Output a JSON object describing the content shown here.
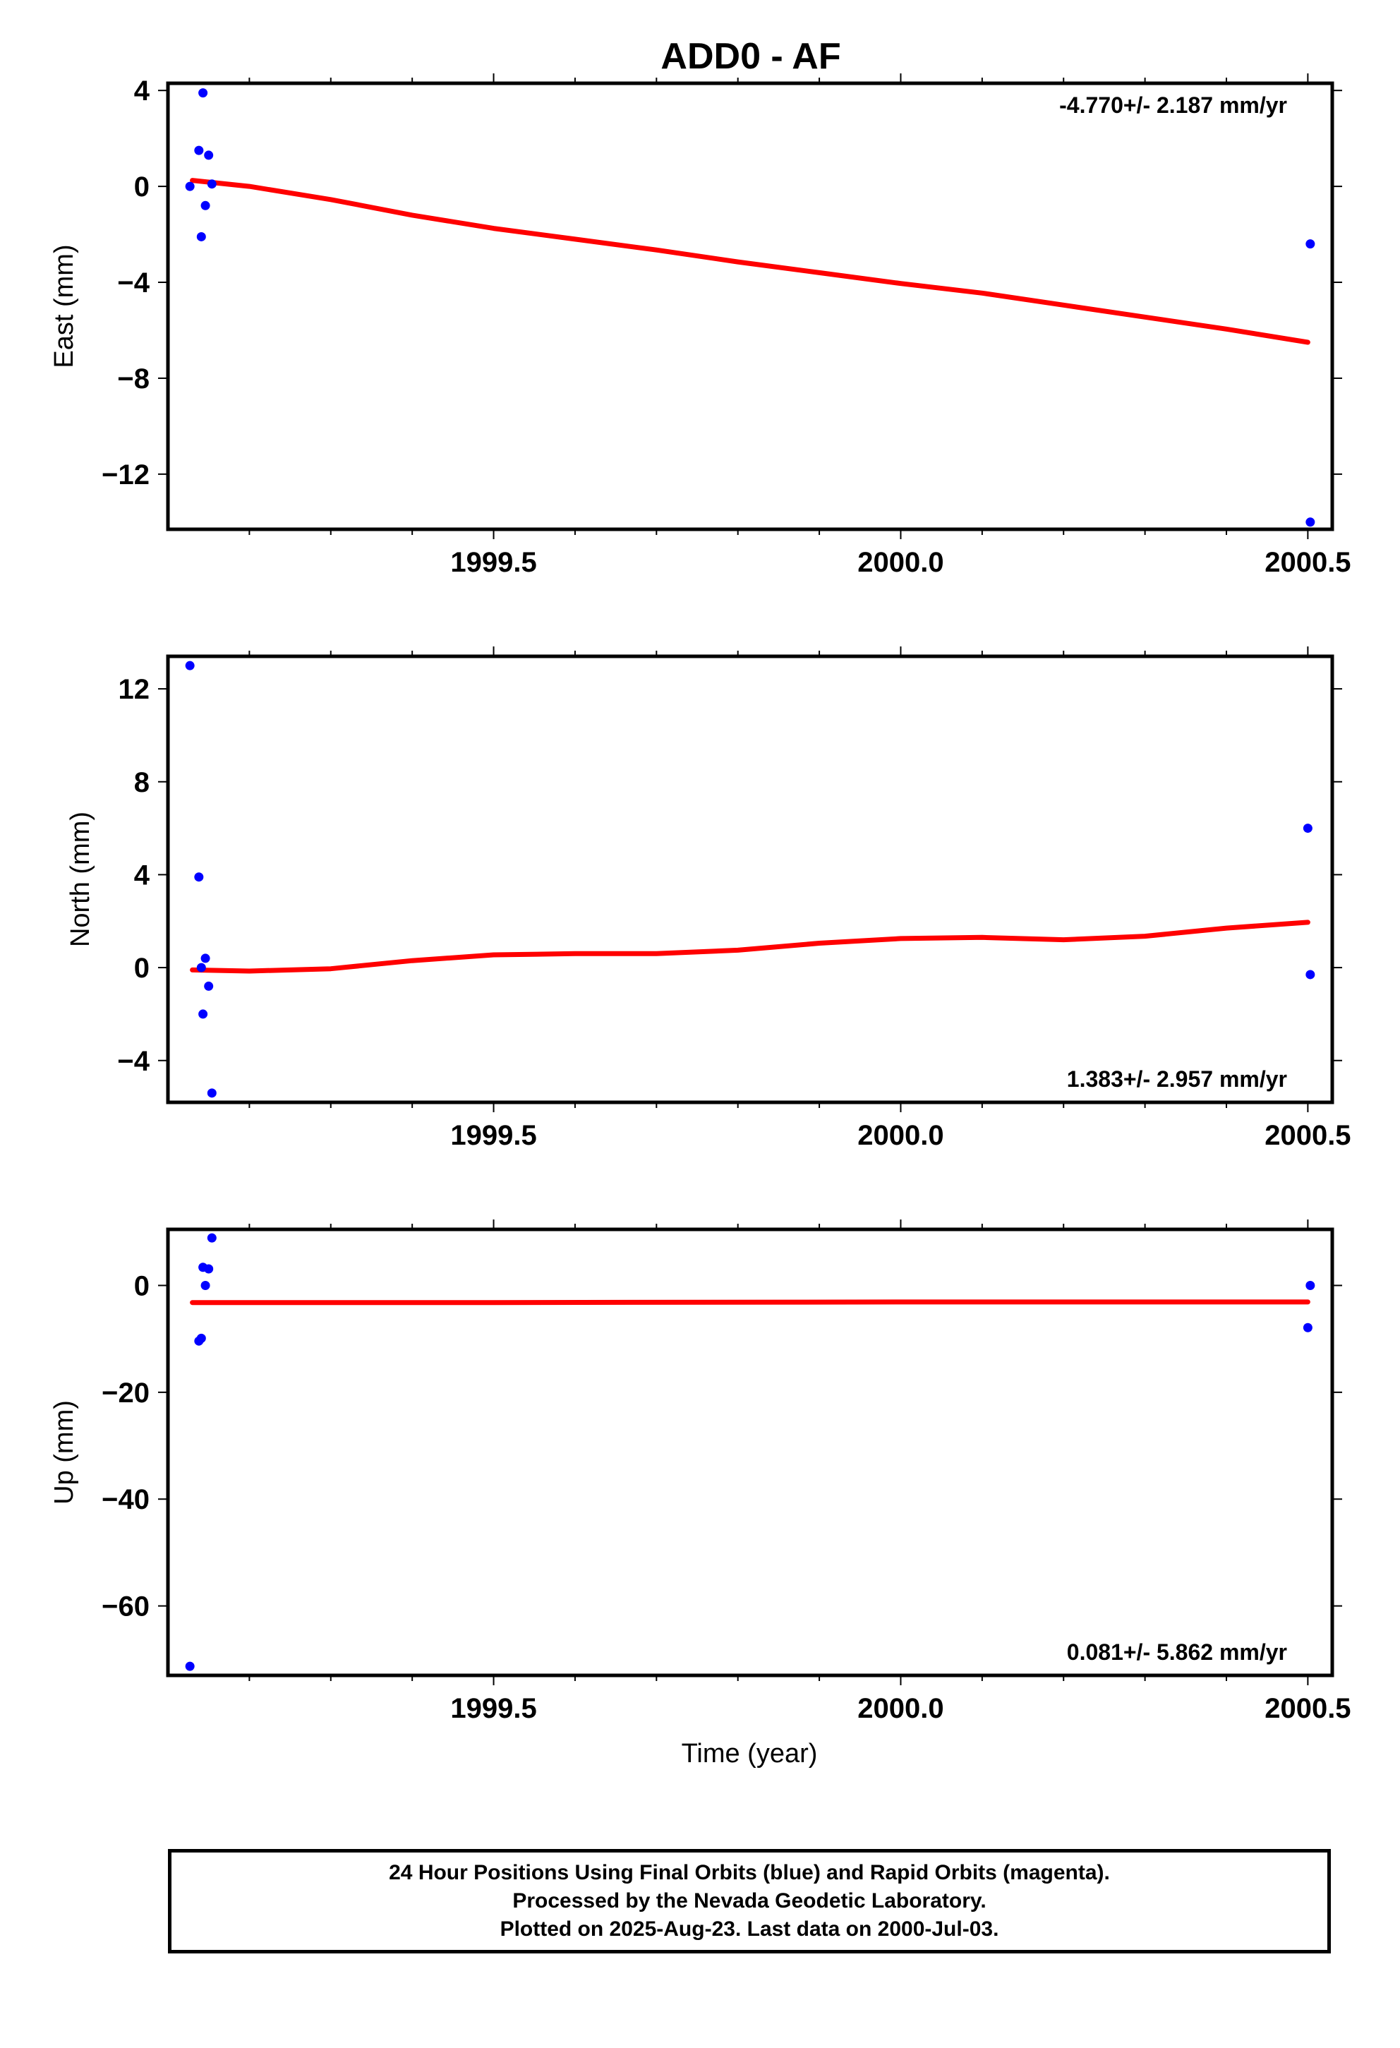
{
  "title": "ADD0 - AF",
  "colors": {
    "points": "#0000ff",
    "fit": "#ff0000",
    "axis": "#000000"
  },
  "x_axis": {
    "label": "Time (year)",
    "range": [
      1999.1,
      2000.53
    ],
    "ticks": [
      "1999.5",
      "2000.0",
      "2000.5"
    ],
    "tick_values": [
      1999.5,
      2000.0,
      2000.5
    ]
  },
  "chart_data": [
    {
      "type": "scatter",
      "ylabel": "East (mm)",
      "ylim": [
        -14.3,
        4.3
      ],
      "yticks": [
        4,
        0,
        -4,
        -8,
        -12
      ],
      "ytick_labels": [
        "4",
        "0",
        "−4",
        "−8",
        "−12"
      ],
      "xlim": [
        1999.1,
        2000.53
      ],
      "annotation": "-4.770+/- 2.187 mm/yr",
      "points": [
        {
          "x": 1999.127,
          "y": 0.0
        },
        {
          "x": 1999.138,
          "y": 1.5
        },
        {
          "x": 1999.141,
          "y": -2.1
        },
        {
          "x": 1999.143,
          "y": 3.9
        },
        {
          "x": 1999.146,
          "y": -0.8
        },
        {
          "x": 1999.15,
          "y": 1.3
        },
        {
          "x": 1999.154,
          "y": 0.1
        },
        {
          "x": 2000.503,
          "y": -2.4
        },
        {
          "x": 2000.503,
          "y": -14.0
        }
      ],
      "fit": {
        "x": [
          1999.13,
          1999.2,
          1999.3,
          1999.4,
          1999.5,
          1999.6,
          1999.7,
          1999.8,
          1999.9,
          2000.0,
          2000.1,
          2000.2,
          2000.3,
          2000.4,
          2000.5
        ],
        "y": [
          0.25,
          0.0,
          -0.55,
          -1.2,
          -1.75,
          -2.2,
          -2.65,
          -3.15,
          -3.6,
          -4.05,
          -4.45,
          -4.95,
          -5.45,
          -5.95,
          -6.5
        ]
      }
    },
    {
      "type": "scatter",
      "ylabel": "North (mm)",
      "ylim": [
        -5.8,
        13.4
      ],
      "yticks": [
        12,
        8,
        4,
        0,
        -4
      ],
      "ytick_labels": [
        "12",
        "8",
        "4",
        "0",
        "−4"
      ],
      "xlim": [
        1999.1,
        2000.53
      ],
      "annotation": "1.383+/- 2.957 mm/yr",
      "points": [
        {
          "x": 1999.127,
          "y": 13.0
        },
        {
          "x": 1999.138,
          "y": 3.9
        },
        {
          "x": 1999.141,
          "y": 0.0
        },
        {
          "x": 1999.143,
          "y": -2.0
        },
        {
          "x": 1999.146,
          "y": 0.4
        },
        {
          "x": 1999.15,
          "y": -0.8
        },
        {
          "x": 1999.154,
          "y": -5.4
        },
        {
          "x": 2000.5,
          "y": 6.0
        },
        {
          "x": 2000.503,
          "y": -0.3
        }
      ],
      "fit": {
        "x": [
          1999.13,
          1999.2,
          1999.3,
          1999.4,
          1999.5,
          1999.6,
          1999.7,
          1999.8,
          1999.9,
          2000.0,
          2000.1,
          2000.2,
          2000.3,
          2000.4,
          2000.5
        ],
        "y": [
          -0.1,
          -0.15,
          -0.05,
          0.3,
          0.55,
          0.6,
          0.6,
          0.75,
          1.05,
          1.25,
          1.3,
          1.2,
          1.35,
          1.7,
          1.95
        ]
      }
    },
    {
      "type": "scatter",
      "ylabel": "Up (mm)",
      "ylim": [
        -73.0,
        10.5
      ],
      "yticks": [
        0,
        -20,
        -40,
        -60
      ],
      "ytick_labels": [
        "0",
        "−20",
        "−40",
        "−60"
      ],
      "xlim": [
        1999.1,
        2000.53
      ],
      "annotation": "0.081+/- 5.862 mm/yr",
      "points": [
        {
          "x": 1999.127,
          "y": -71.3
        },
        {
          "x": 1999.138,
          "y": -10.4
        },
        {
          "x": 1999.141,
          "y": -9.9
        },
        {
          "x": 1999.143,
          "y": 3.4
        },
        {
          "x": 1999.146,
          "y": 0.0
        },
        {
          "x": 1999.15,
          "y": 3.1
        },
        {
          "x": 1999.154,
          "y": 8.9
        },
        {
          "x": 2000.5,
          "y": -7.9
        },
        {
          "x": 2000.503,
          "y": 0.0
        }
      ],
      "fit": {
        "x": [
          1999.13,
          1999.5,
          2000.0,
          2000.5
        ],
        "y": [
          -3.2,
          -3.2,
          -3.1,
          -3.1
        ]
      }
    }
  ],
  "caption": [
    "24 Hour Positions Using Final Orbits (blue) and Rapid Orbits (magenta).",
    "Processed by the Nevada Geodetic Laboratory.",
    "Plotted on 2025-Aug-23. Last data on 2000-Jul-03."
  ]
}
